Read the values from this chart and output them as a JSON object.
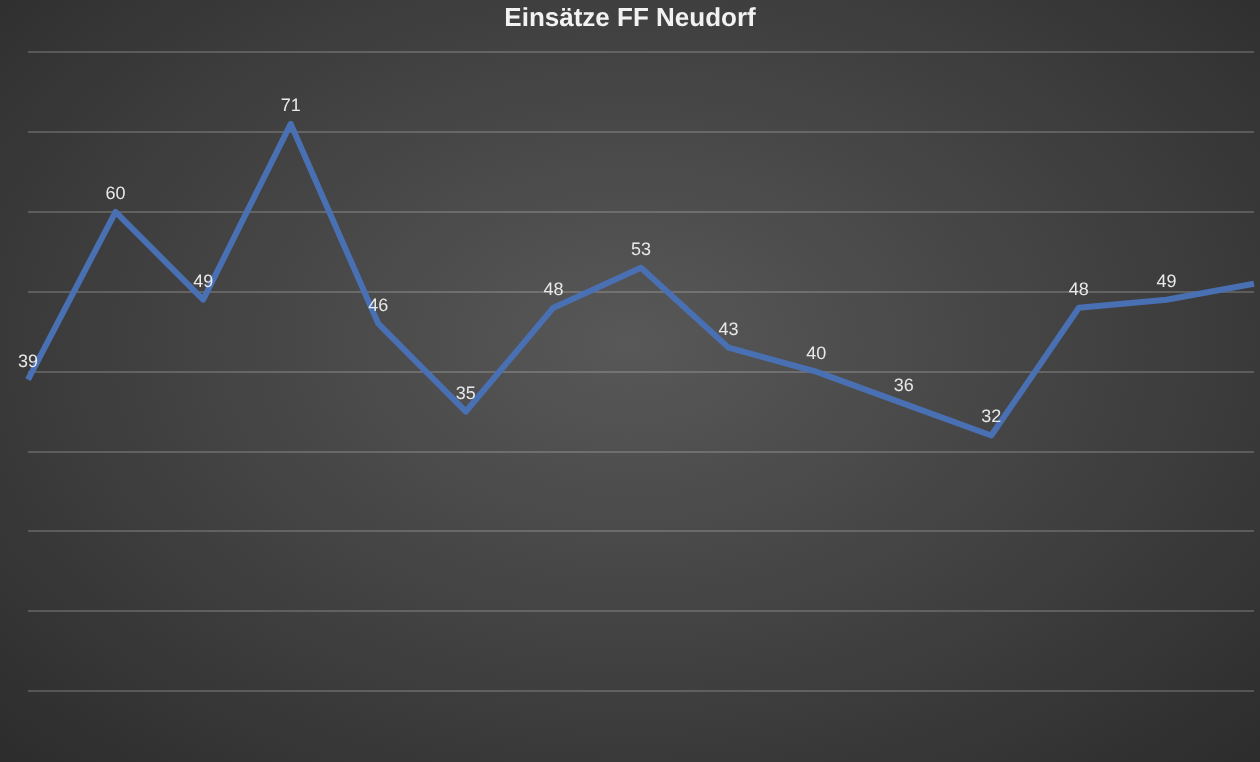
{
  "chart_data": {
    "type": "line",
    "title": "Einsätze  FF Neudorf",
    "categories": [
      null,
      null,
      null,
      null,
      null,
      null,
      null,
      null,
      null,
      null,
      null,
      null,
      null,
      null,
      null
    ],
    "series": [
      {
        "color": "#4a70b4",
        "values": [
          39,
          60,
          49,
          71,
          46,
          35,
          48,
          53,
          43,
          40,
          36,
          32,
          48,
          49,
          51
        ],
        "value_labels": [
          "39",
          "60",
          "49",
          "71",
          "46",
          "35",
          "48",
          "53",
          "43",
          "40",
          "36",
          "32",
          "48",
          "49",
          null
        ]
      }
    ],
    "ylim": [
      0,
      80
    ],
    "yticks": [
      {
        "value": 0,
        "label": null
      },
      {
        "value": 10,
        "label": null
      },
      {
        "value": 20,
        "label": null
      },
      {
        "value": 30,
        "label": null
      },
      {
        "value": 40,
        "label": null
      },
      {
        "value": 50,
        "label": null
      },
      {
        "value": 60,
        "label": null
      },
      {
        "value": 70,
        "label": null
      },
      {
        "value": 80,
        "label": null
      }
    ],
    "grid": "y",
    "legend": false,
    "marker": "none",
    "line_style": "solid"
  }
}
